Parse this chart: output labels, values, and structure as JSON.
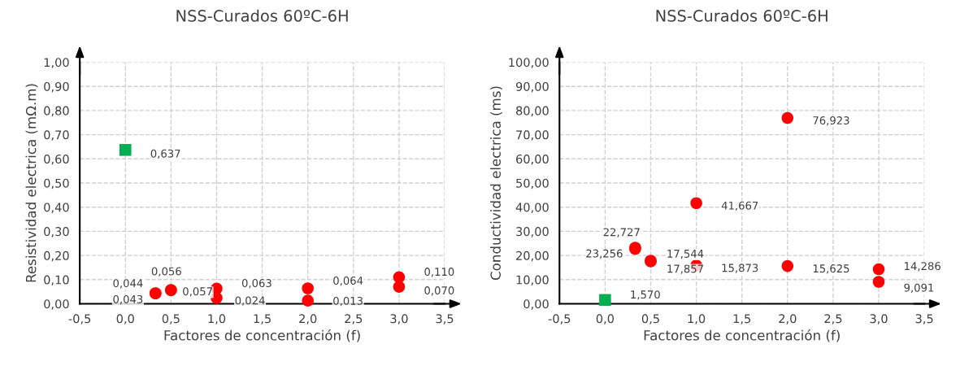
{
  "chart_data": [
    {
      "type": "scatter",
      "title": "NSS-Curados 60ºC-6H",
      "xlabel": "Factores de concentración (f)",
      "ylabel": "Resistividad electrica (mΩ.m)",
      "xlim": [
        -0.5,
        3.5
      ],
      "ylim": [
        0,
        1
      ],
      "xticks": [
        {
          "value": -0.5,
          "label": "-0,5"
        },
        {
          "value": 0,
          "label": "0,0"
        },
        {
          "value": 0.5,
          "label": "0,5"
        },
        {
          "value": 1,
          "label": "1,0"
        },
        {
          "value": 1.5,
          "label": "1,5"
        },
        {
          "value": 2,
          "label": "2,0"
        },
        {
          "value": 2.5,
          "label": "2,5"
        },
        {
          "value": 3,
          "label": "3,0"
        },
        {
          "value": 3.5,
          "label": "3,5"
        }
      ],
      "yticks": [
        {
          "value": 0,
          "label": "0,00"
        },
        {
          "value": 0.1,
          "label": "0,10"
        },
        {
          "value": 0.2,
          "label": "0,20"
        },
        {
          "value": 0.3,
          "label": "0,30"
        },
        {
          "value": 0.4,
          "label": "0,40"
        },
        {
          "value": 0.5,
          "label": "0,50"
        },
        {
          "value": 0.6,
          "label": "0,60"
        },
        {
          "value": 0.7,
          "label": "0,70"
        },
        {
          "value": 0.8,
          "label": "0,80"
        },
        {
          "value": 0.9,
          "label": "0,90"
        },
        {
          "value": 1,
          "label": "1,00"
        }
      ],
      "grid": true,
      "legend": false,
      "series": [
        {
          "color": "#00b050",
          "marker": "square",
          "x": [
            0
          ],
          "values": [
            0.637
          ],
          "value_labels": [
            "0,637"
          ]
        },
        {
          "color": "#ff0000",
          "marker": "circle",
          "x": [
            0.33,
            0.33,
            0.5,
            0.5,
            1,
            1,
            2,
            2,
            3,
            3
          ],
          "values": [
            0.044,
            0.043,
            0.056,
            0.057,
            0.063,
            0.024,
            0.064,
            0.013,
            0.11,
            0.07
          ],
          "value_labels": [
            "0,044",
            "0,043",
            "0,056",
            "0,057",
            "0,063",
            "0,024",
            "0,064",
            "0,013",
            "0,110",
            "0,070"
          ]
        }
      ]
    },
    {
      "type": "scatter",
      "title": "NSS-Curados 60ºC-6H",
      "xlabel": "Factores de concentración (f)",
      "ylabel": "Conductividad electrica (ms)",
      "xlim": [
        -0.5,
        3.5
      ],
      "ylim": [
        0,
        100
      ],
      "xticks": [
        {
          "value": -0.5,
          "label": "-0,5"
        },
        {
          "value": 0,
          "label": "0,0"
        },
        {
          "value": 0.5,
          "label": "0,5"
        },
        {
          "value": 1,
          "label": "1,0"
        },
        {
          "value": 1.5,
          "label": "1,5"
        },
        {
          "value": 2,
          "label": "2,0"
        },
        {
          "value": 2.5,
          "label": "2,5"
        },
        {
          "value": 3,
          "label": "3,0"
        },
        {
          "value": 3.5,
          "label": "3,5"
        }
      ],
      "yticks": [
        {
          "value": 0,
          "label": "0,00"
        },
        {
          "value": 10,
          "label": "10,00"
        },
        {
          "value": 20,
          "label": "20,00"
        },
        {
          "value": 30,
          "label": "30,00"
        },
        {
          "value": 40,
          "label": "40,00"
        },
        {
          "value": 50,
          "label": "50,00"
        },
        {
          "value": 60,
          "label": "60,00"
        },
        {
          "value": 70,
          "label": "70,00"
        },
        {
          "value": 80,
          "label": "80,00"
        },
        {
          "value": 90,
          "label": "90,00"
        },
        {
          "value": 100,
          "label": "100,00"
        }
      ],
      "grid": true,
      "legend": false,
      "series": [
        {
          "color": "#00b050",
          "marker": "square",
          "x": [
            0
          ],
          "values": [
            1.57
          ],
          "value_labels": [
            "1,570"
          ]
        },
        {
          "color": "#ff0000",
          "marker": "circle",
          "x": [
            0.33,
            0.33,
            0.5,
            0.5,
            1,
            1,
            2,
            2,
            3,
            3
          ],
          "values": [
            22.727,
            23.256,
            17.857,
            17.544,
            15.873,
            41.667,
            15.625,
            76.923,
            9.091,
            14.286
          ],
          "value_labels": [
            "22,727",
            "23,256",
            "17,857",
            "17,544",
            "15,873",
            "41,667",
            "15,625",
            "76,923",
            "9,091",
            "14,286"
          ]
        }
      ]
    }
  ]
}
